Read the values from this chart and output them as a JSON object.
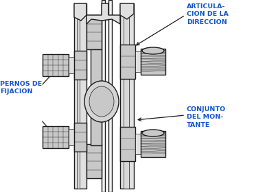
{
  "bg_color": "#ffffff",
  "label_color_articula": "#1155cc",
  "label_color_pernos": "#1155cc",
  "label_color_conjunto": "#1155cc",
  "line_color": "#1a1a1a",
  "fill_light": "#e8e8e8",
  "fill_hatch": "#d0d0d0",
  "fill_white": "#f8f8f8",
  "labels": {
    "articula": "ARTICULA-\nCION DE LA\nDIRECCION",
    "pernos": "PERNOS DE\nFIJACION",
    "conjunto": "CONJUNTO\nDEL MON-\nTANTE"
  }
}
